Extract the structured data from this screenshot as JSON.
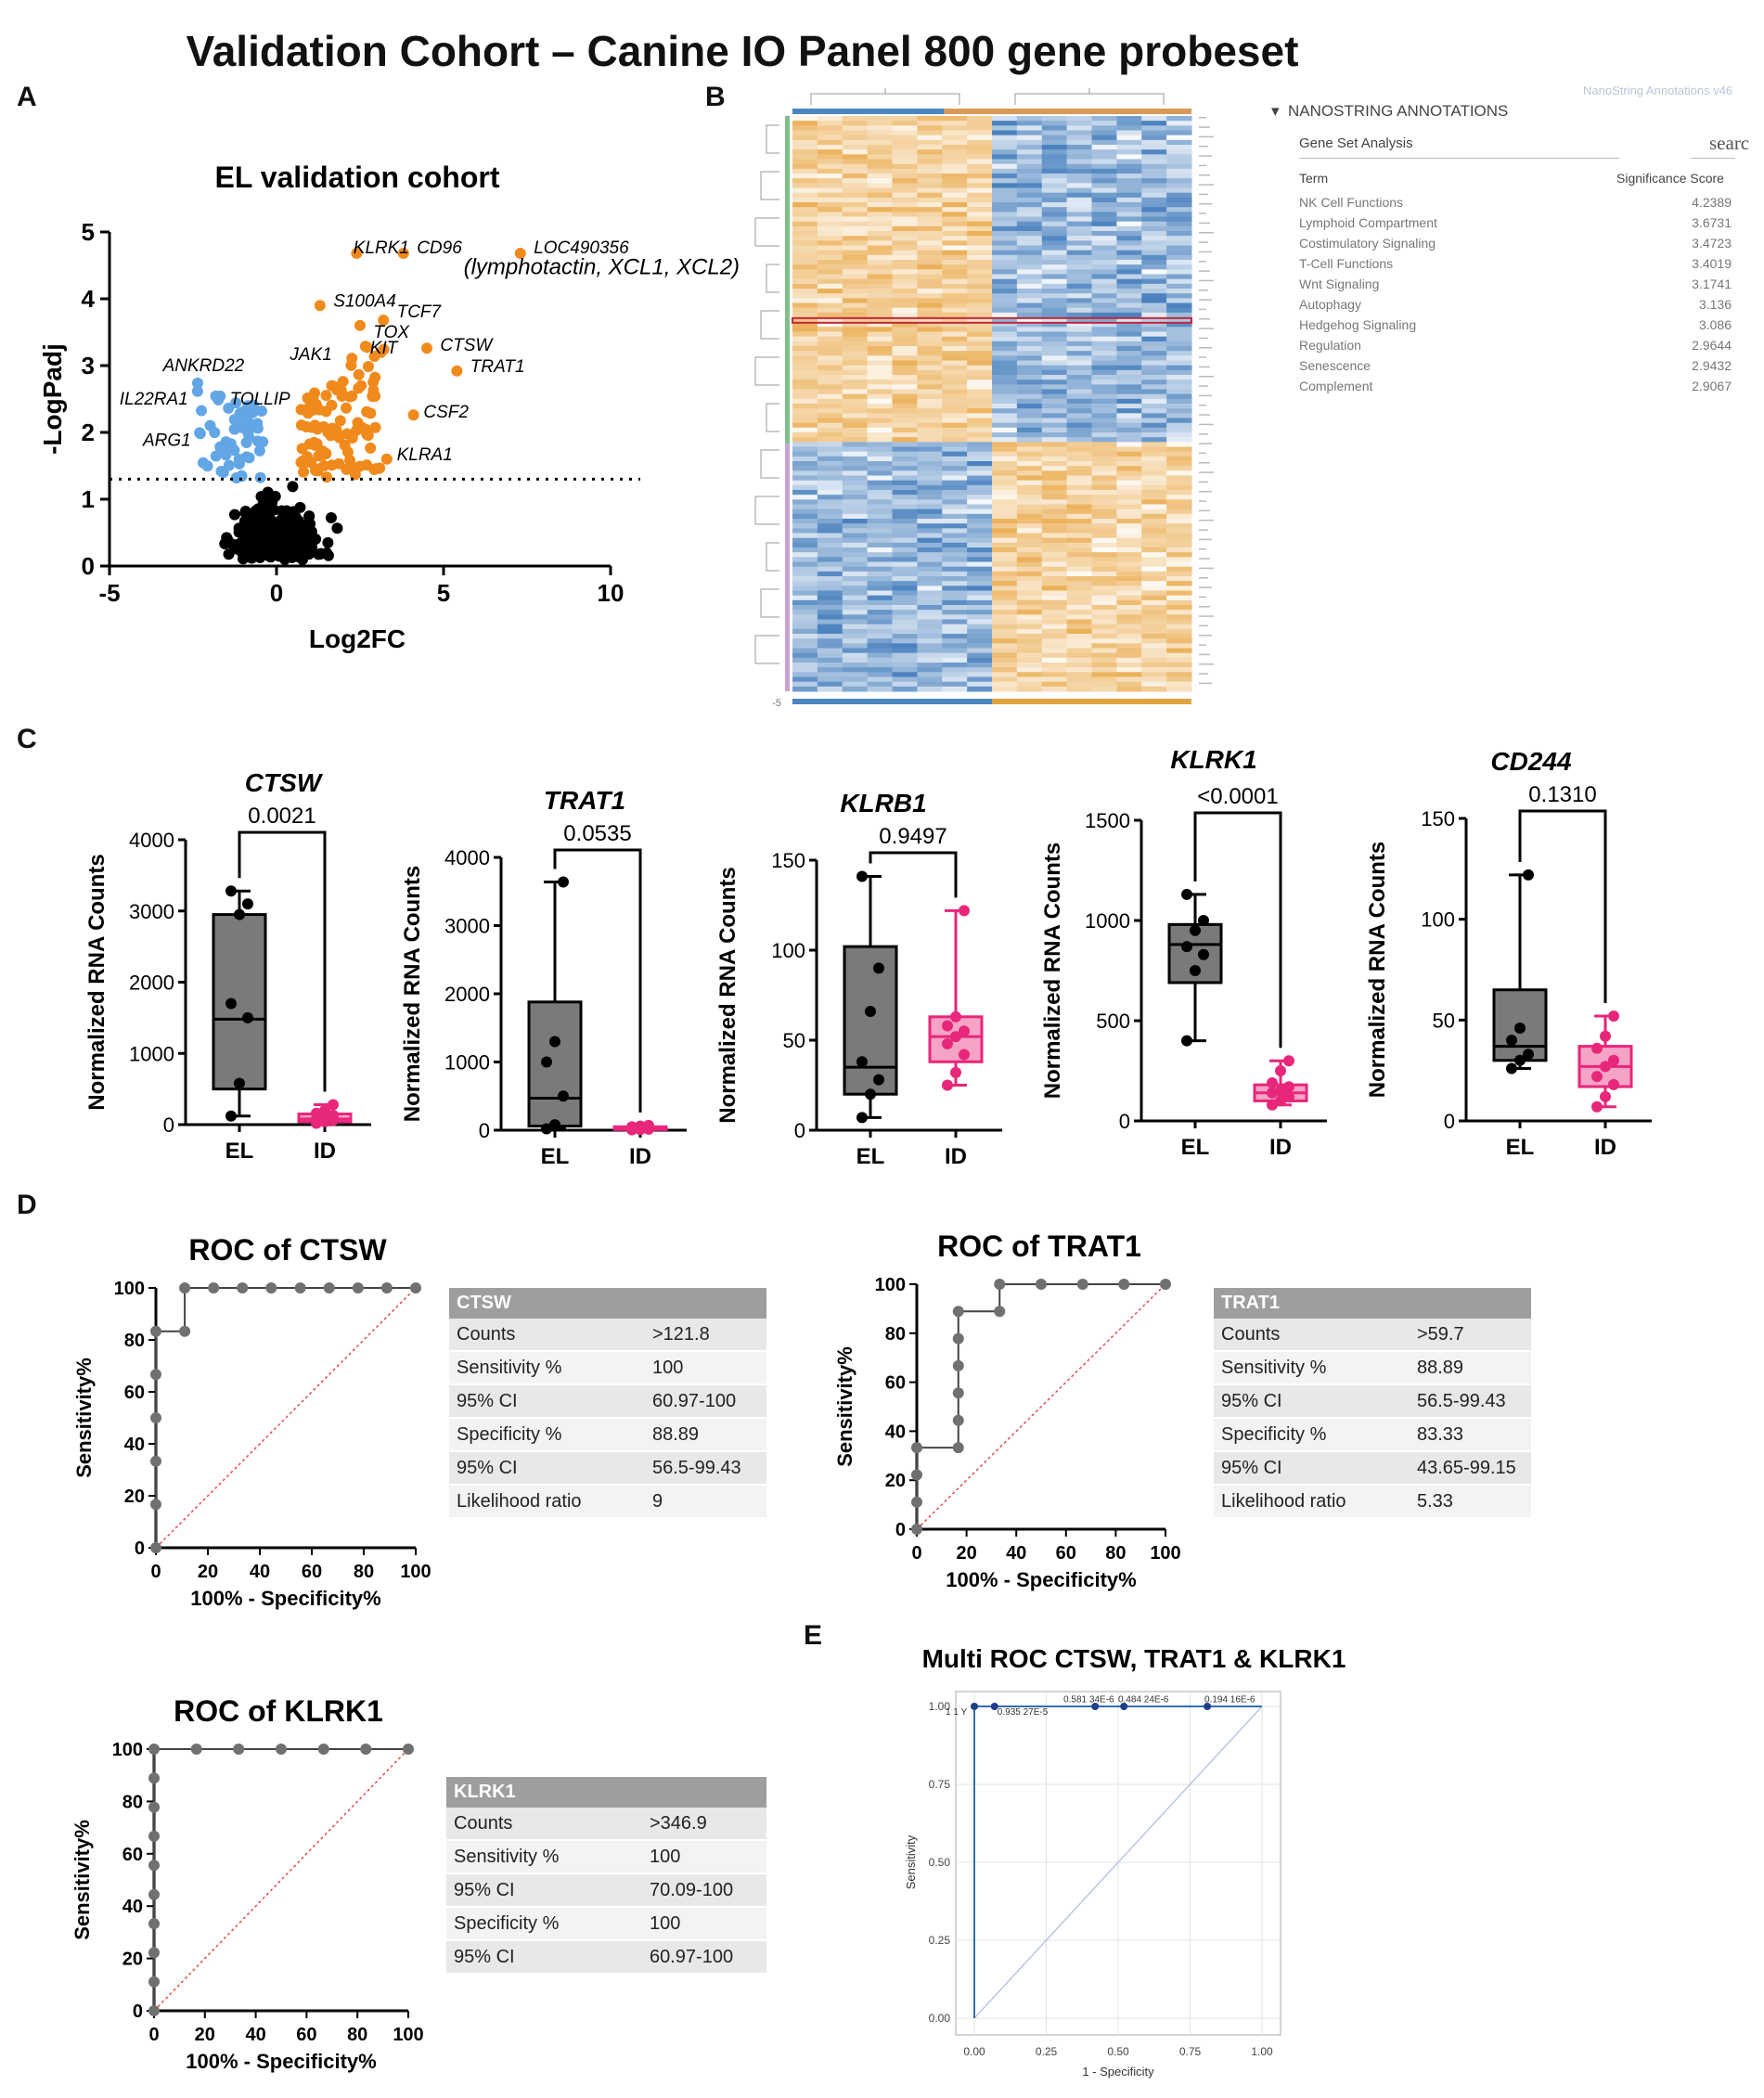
{
  "title": "Validation Cohort – Canine IO Panel 800 gene probeset",
  "panel_labels": {
    "a": "A",
    "b": "B",
    "c": "C",
    "d": "D",
    "e": "E"
  },
  "nanostring": {
    "version": "NanoString Annotations v46",
    "header": "NANOSTRING ANNOTATIONS",
    "gene_set_label": "Gene Set Analysis",
    "search_placeholder": "searc",
    "col_term": "Term",
    "col_score": "Significance Score",
    "rows": [
      {
        "term": "NK Cell Functions",
        "score": "4.2389"
      },
      {
        "term": "Lymphoid Compartment",
        "score": "3.6731"
      },
      {
        "term": "Costimulatory Signaling",
        "score": "3.4723"
      },
      {
        "term": "T-Cell Functions",
        "score": "3.4019"
      },
      {
        "term": "Wnt Signaling",
        "score": "3.1741"
      },
      {
        "term": "Autophagy",
        "score": "3.136"
      },
      {
        "term": "Hedgehog Signaling",
        "score": "3.086"
      },
      {
        "term": "Regulation",
        "score": "2.9644"
      },
      {
        "term": "Senescence",
        "score": "2.9432"
      },
      {
        "term": "Complement",
        "score": "2.9067"
      }
    ]
  },
  "heatmap": {
    "scale_min": "-5",
    "colors": {
      "high": "#e8a33d",
      "low": "#2b6cb3",
      "mid": "#ffffff"
    }
  },
  "colors": {
    "orange": "#f08a1c",
    "blue": "#62a6e6",
    "pink": "#e8267a",
    "pink_fill": "#f5a3c6",
    "gray_box": "#7a7a7a",
    "roc": "#707070"
  },
  "tables": {
    "ctsw": {
      "header": "CTSW",
      "rows": [
        [
          "Counts",
          ">121.8"
        ],
        [
          "Sensitivity %",
          "100"
        ],
        [
          "95% CI",
          "60.97-100"
        ],
        [
          "Specificity %",
          "88.89"
        ],
        [
          "95% CI",
          "56.5-99.43"
        ],
        [
          "Likelihood ratio",
          "9"
        ]
      ]
    },
    "trat1": {
      "header": "TRAT1",
      "rows": [
        [
          "Counts",
          ">59.7"
        ],
        [
          "Sensitivity %",
          "88.89"
        ],
        [
          "95% CI",
          "56.5-99.43"
        ],
        [
          "Specificity %",
          "83.33"
        ],
        [
          "95% CI",
          "43.65-99.15"
        ],
        [
          "Likelihood ratio",
          "5.33"
        ]
      ]
    },
    "klrk1": {
      "header": "KLRK1",
      "rows": [
        [
          "Counts",
          ">346.9"
        ],
        [
          "Sensitivity %",
          "100"
        ],
        [
          "95% CI",
          "70.09-100"
        ],
        [
          "Specificity %",
          "100"
        ],
        [
          "95% CI",
          "60.97-100"
        ]
      ]
    }
  },
  "chart_data": [
    {
      "id": "volcano",
      "type": "scatter",
      "title": "EL validation cohort",
      "xlabel": "Log2FC",
      "ylabel": "-LogPadj",
      "xlim": [
        -5,
        10
      ],
      "ylim": [
        0,
        5
      ],
      "xticks": [
        -5,
        0,
        5,
        10
      ],
      "yticks": [
        0,
        1,
        2,
        3,
        4,
        5
      ],
      "threshold": 1.3,
      "labels": [
        {
          "text": "KLRK1",
          "x": 2.3,
          "y": 4.68
        },
        {
          "text": "CD96",
          "x": 4.2,
          "y": 4.68
        },
        {
          "text": "LOC490356",
          "x": 7.7,
          "y": 4.68
        },
        {
          "text": "(lymphotactin, XCL1, XCL2)",
          "x": 5.6,
          "y": 4.37
        },
        {
          "text": "S100A4",
          "x": 1.7,
          "y": 3.88
        },
        {
          "text": "TCF7",
          "x": 3.6,
          "y": 3.72
        },
        {
          "text": "TOX",
          "x": 2.9,
          "y": 3.42
        },
        {
          "text": "CTSW",
          "x": 4.9,
          "y": 3.22
        },
        {
          "text": "KIT",
          "x": 2.8,
          "y": 3.18
        },
        {
          "text": "JAK1",
          "x": 0.4,
          "y": 3.08
        },
        {
          "text": "TRAT1",
          "x": 5.8,
          "y": 2.9
        },
        {
          "text": "ANKRD22",
          "x": -3.4,
          "y": 2.92
        },
        {
          "text": "IL22RA1",
          "x": -4.7,
          "y": 2.42
        },
        {
          "text": "TOLLIP",
          "x": -1.4,
          "y": 2.42
        },
        {
          "text": "CSF2",
          "x": 4.4,
          "y": 2.22
        },
        {
          "text": "ARG1",
          "x": -4.0,
          "y": 1.8
        },
        {
          "text": "KLRA1",
          "x": 3.6,
          "y": 1.58
        }
      ]
    },
    {
      "id": "box",
      "type": "box",
      "ylabel": "Normalized RNA Counts",
      "categories": [
        "EL",
        "ID"
      ],
      "genes": [
        {
          "gene": "CTSW",
          "p": "0.0021",
          "ymax": 4000,
          "ticks": [
            0,
            1000,
            2000,
            3000,
            4000
          ],
          "EL": {
            "min": 120,
            "q1": 500,
            "med": 1480,
            "q3": 2950,
            "max": 3280,
            "pts": [
              120,
              580,
              1500,
              1700,
              2950,
              3100,
              3280
            ]
          },
          "ID": {
            "min": 10,
            "q1": 40,
            "med": 80,
            "q3": 150,
            "max": 280,
            "pts": [
              20,
              40,
              60,
              80,
              100,
              130,
              160,
              200,
              280
            ]
          }
        },
        {
          "gene": "TRAT1",
          "p": "0.0535",
          "ymax": 4000,
          "ticks": [
            0,
            1000,
            2000,
            3000,
            4000
          ],
          "EL": {
            "min": 20,
            "q1": 60,
            "med": 470,
            "q3": 1880,
            "max": 3640,
            "pts": [
              20,
              80,
              500,
              1000,
              1300,
              3640
            ]
          },
          "ID": {
            "min": 5,
            "q1": 10,
            "med": 20,
            "q3": 50,
            "max": 70,
            "pts": [
              5,
              10,
              15,
              20,
              30,
              40,
              50,
              60,
              70
            ]
          }
        },
        {
          "gene": "KLRB1",
          "p": "0.9497",
          "ymax": 150,
          "ticks": [
            0,
            50,
            100,
            150
          ],
          "EL": {
            "min": 7,
            "q1": 20,
            "med": 35,
            "q3": 102,
            "max": 141,
            "pts": [
              7,
              20,
              28,
              38,
              66,
              90,
              141
            ]
          },
          "ID": {
            "min": 25,
            "q1": 38,
            "med": 52,
            "q3": 63,
            "max": 122,
            "pts": [
              25,
              32,
              42,
              48,
              52,
              55,
              58,
              63,
              122
            ]
          }
        },
        {
          "gene": "KLRK1",
          "p": "<0.0001",
          "ymax": 1500,
          "ticks": [
            0,
            500,
            1000,
            1500
          ],
          "EL": {
            "min": 400,
            "q1": 690,
            "med": 880,
            "q3": 980,
            "max": 1130,
            "pts": [
              400,
              750,
              830,
              870,
              950,
              1000,
              1130
            ]
          },
          "ID": {
            "min": 80,
            "q1": 100,
            "med": 140,
            "q3": 180,
            "max": 300,
            "pts": [
              80,
              100,
              120,
              140,
              150,
              170,
              190,
              250,
              300
            ]
          }
        },
        {
          "gene": "CD244",
          "p": "0.1310",
          "ymax": 150,
          "ticks": [
            0,
            50,
            100,
            150
          ],
          "EL": {
            "min": 26,
            "q1": 30,
            "med": 37,
            "q3": 65,
            "max": 122,
            "pts": [
              26,
              30,
              33,
              40,
              46,
              122
            ]
          },
          "ID": {
            "min": 7,
            "q1": 17,
            "med": 27,
            "q3": 37,
            "max": 52,
            "pts": [
              7,
              12,
              18,
              22,
              27,
              30,
              36,
              42,
              52
            ]
          }
        }
      ]
    },
    {
      "id": "roc",
      "type": "line",
      "xlabel": "100% - Specificity%",
      "ylabel": "Sensitivity%",
      "xlim": [
        0,
        100
      ],
      "ylim": [
        0,
        100
      ],
      "ticks": [
        0,
        20,
        40,
        60,
        80,
        100
      ],
      "curves": [
        {
          "title": "ROC of CTSW",
          "points": [
            [
              0,
              0
            ],
            [
              0,
              16.7
            ],
            [
              0,
              33.3
            ],
            [
              0,
              50
            ],
            [
              0,
              66.7
            ],
            [
              0,
              83.3
            ],
            [
              11.1,
              83.3
            ],
            [
              11.1,
              100
            ],
            [
              22.2,
              100
            ],
            [
              33.3,
              100
            ],
            [
              44.4,
              100
            ],
            [
              55.6,
              100
            ],
            [
              66.7,
              100
            ],
            [
              77.8,
              100
            ],
            [
              88.9,
              100
            ],
            [
              100,
              100
            ]
          ]
        },
        {
          "title": "ROC of TRAT1",
          "points": [
            [
              0,
              0
            ],
            [
              0,
              11.1
            ],
            [
              0,
              22.2
            ],
            [
              0,
              33.3
            ],
            [
              16.7,
              33.3
            ],
            [
              16.7,
              44.4
            ],
            [
              16.7,
              55.6
            ],
            [
              16.7,
              66.7
            ],
            [
              16.7,
              77.8
            ],
            [
              16.7,
              88.9
            ],
            [
              33.3,
              88.9
            ],
            [
              33.3,
              100
            ],
            [
              50,
              100
            ],
            [
              66.7,
              100
            ],
            [
              83.3,
              100
            ],
            [
              100,
              100
            ]
          ]
        },
        {
          "title": "ROC of KLRK1",
          "points": [
            [
              0,
              0
            ],
            [
              0,
              11.1
            ],
            [
              0,
              22.2
            ],
            [
              0,
              33.3
            ],
            [
              0,
              44.4
            ],
            [
              0,
              55.6
            ],
            [
              0,
              66.7
            ],
            [
              0,
              77.8
            ],
            [
              0,
              88.9
            ],
            [
              0,
              100
            ],
            [
              16.7,
              100
            ],
            [
              33.3,
              100
            ],
            [
              50,
              100
            ],
            [
              66.7,
              100
            ],
            [
              83.3,
              100
            ],
            [
              100,
              100
            ]
          ]
        }
      ]
    },
    {
      "id": "multi-roc",
      "type": "line",
      "title": "Multi ROC CTSW, TRAT1 & KLRK1",
      "xlabel": "1 - Specificity",
      "ylabel": "Sensitivity",
      "xlim": [
        0,
        1
      ],
      "ylim": [
        0,
        1
      ],
      "ticks": [
        "0.00",
        "0.25",
        "0.50",
        "0.75",
        "1.00"
      ],
      "points": [
        [
          0,
          0
        ],
        [
          0,
          1
        ],
        [
          0.07,
          1
        ],
        [
          0.42,
          1
        ],
        [
          0.52,
          1
        ],
        [
          0.81,
          1
        ],
        [
          1,
          1
        ]
      ],
      "annotations": [
        {
          "text": "1 1 Y",
          "x": -0.1,
          "y": 0.985
        },
        {
          "text": "0.935 27E-5",
          "x": 0.08,
          "y": 0.985
        },
        {
          "text": "0.581 34E-6",
          "x": 0.31,
          "y": 1.025
        },
        {
          "text": "0.484 24E-6",
          "x": 0.5,
          "y": 1.025
        },
        {
          "text": "0.194 16E-6",
          "x": 0.8,
          "y": 1.025
        }
      ]
    }
  ]
}
